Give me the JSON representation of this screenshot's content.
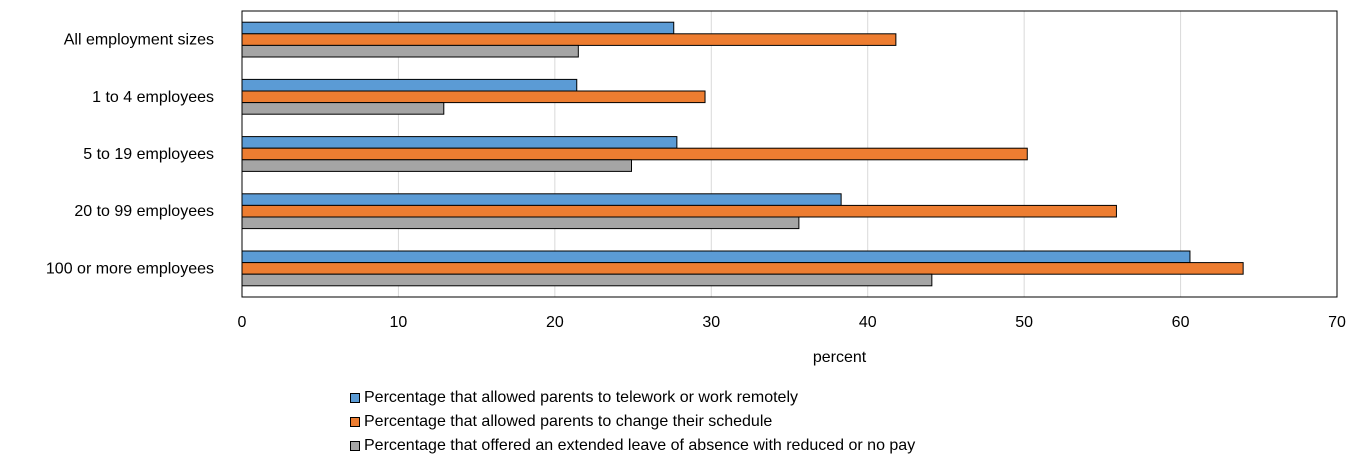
{
  "chart_data": {
    "type": "bar",
    "orientation": "horizontal",
    "categories": [
      "All employment sizes",
      "1 to 4 employees",
      "5 to 19 employees",
      "20 to 99 employees",
      "100 or more employees"
    ],
    "series": [
      {
        "name": "Percentage that allowed parents to telework or work remotely",
        "color": "#5B9BD5",
        "values": [
          27.6,
          21.4,
          27.8,
          38.3,
          60.6
        ]
      },
      {
        "name": "Percentage that allowed parents to change their schedule",
        "color": "#ED7D31",
        "values": [
          41.8,
          29.6,
          50.2,
          55.9,
          64.0
        ]
      },
      {
        "name": "Percentage that offered an extended leave of absence with reduced or no pay",
        "color": "#A5A5A5",
        "values": [
          21.5,
          12.9,
          24.9,
          35.6,
          44.1
        ]
      }
    ],
    "xlabel": "percent",
    "ylabel": "",
    "xlim": [
      0,
      70
    ],
    "xticks": [
      0,
      10,
      20,
      30,
      40,
      50,
      60,
      70
    ],
    "grid": true,
    "legend_position": "bottom"
  }
}
